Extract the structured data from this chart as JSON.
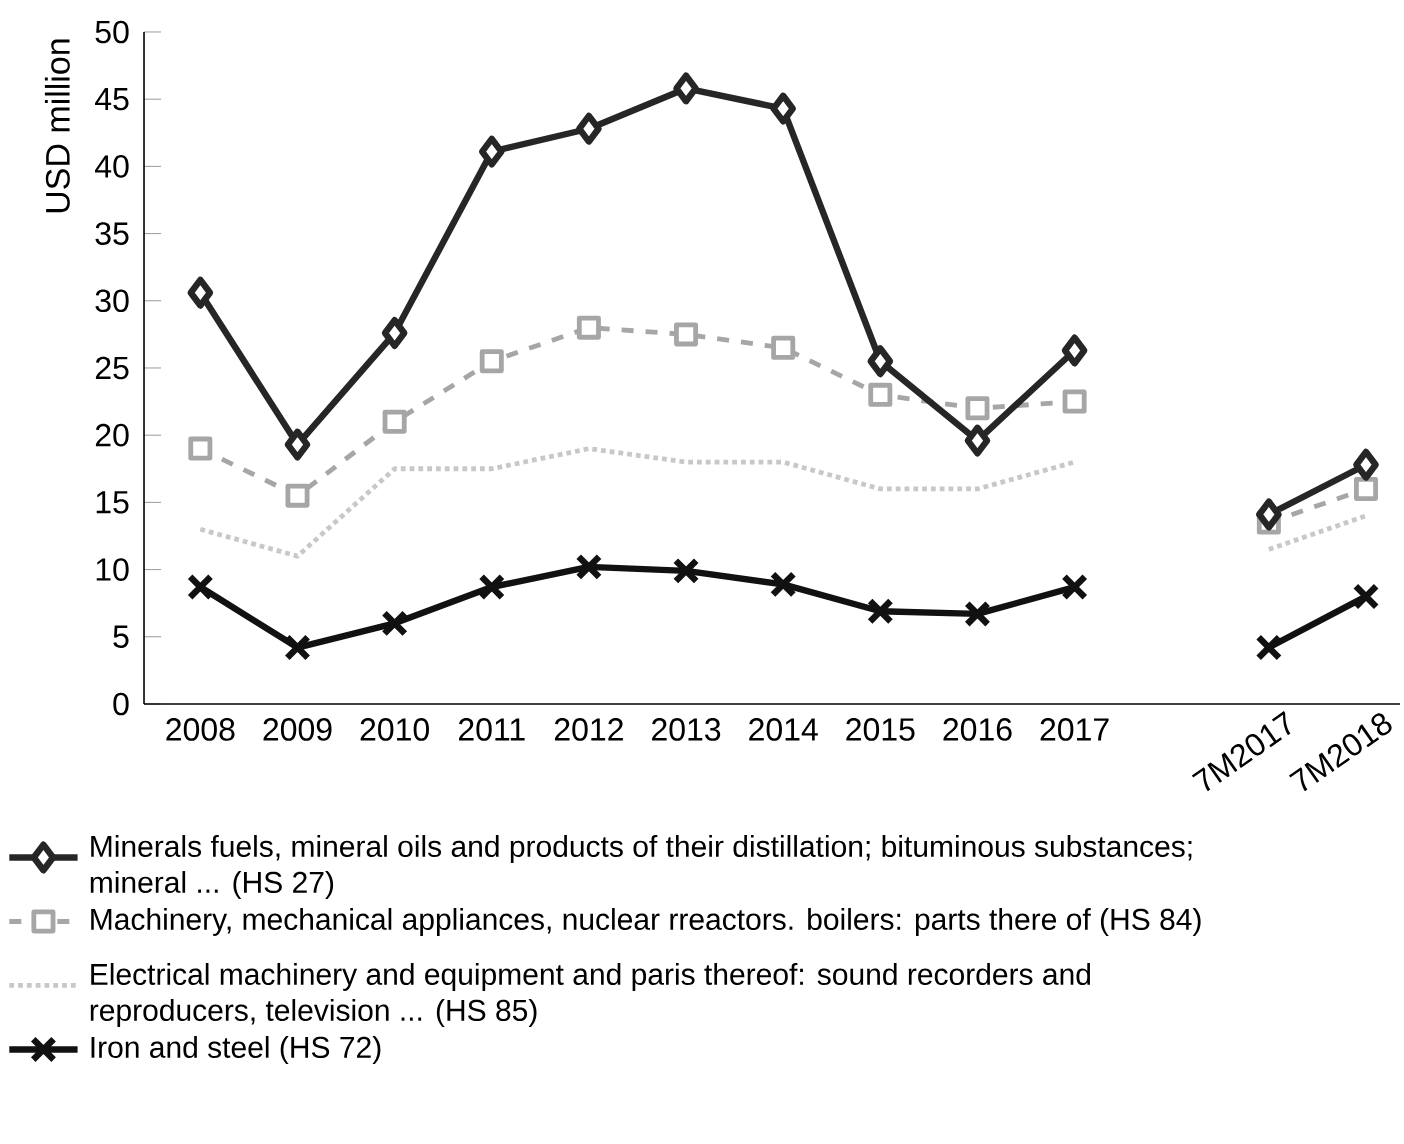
{
  "chart_data": {
    "type": "line",
    "ylabel": "USD million",
    "categories": [
      "2008",
      "2009",
      "2010",
      "2011",
      "2012",
      "2013",
      "2014",
      "2015",
      "2016",
      "2017",
      null,
      "7M2017",
      "7M2018"
    ],
    "ylim": [
      0,
      50
    ],
    "yticks": [
      0,
      5,
      10,
      15,
      20,
      25,
      30,
      35,
      40,
      45,
      50
    ],
    "grid": false,
    "legend": "bottom",
    "series": [
      {
        "name": "Minerals fuels, mineral oils and products of their distillation; bituminous substances; mineral ... (HS 27)",
        "color": "#262626",
        "marker": "diamond",
        "line_style": "solid",
        "values": [
          30.6,
          19.3,
          27.6,
          41.1,
          42.8,
          45.8,
          44.3,
          25.5,
          19.6,
          26.3,
          null,
          14.1,
          17.8
        ]
      },
      {
        "name": "Machinery, mechanical appliances, nuclear rreactors. boilers: parts there of  (HS 84)",
        "color": "#a6a6a6",
        "marker": "square",
        "line_style": "dashed",
        "values": [
          19.0,
          15.5,
          21.0,
          25.5,
          28.0,
          27.5,
          26.5,
          23.0,
          22.0,
          22.5,
          null,
          13.5,
          16.0
        ]
      },
      {
        "name": "Electrical machinery and equipment and paris thereof: sound recorders and reproducers, television ... (HS 85)",
        "color": "#c8c8c8",
        "marker": "none",
        "line_style": "dotted",
        "values": [
          13.0,
          11.0,
          17.5,
          17.5,
          19.0,
          18.0,
          18.0,
          16.0,
          16.0,
          18.0,
          null,
          11.5,
          14.0
        ]
      },
      {
        "name": "Iron and steel (HS 72)",
        "color": "#111111",
        "marker": "cross",
        "line_style": "solid",
        "values": [
          8.7,
          4.2,
          6.0,
          8.7,
          10.2,
          9.9,
          8.9,
          6.9,
          6.7,
          8.7,
          null,
          4.2,
          8.0
        ]
      }
    ]
  }
}
